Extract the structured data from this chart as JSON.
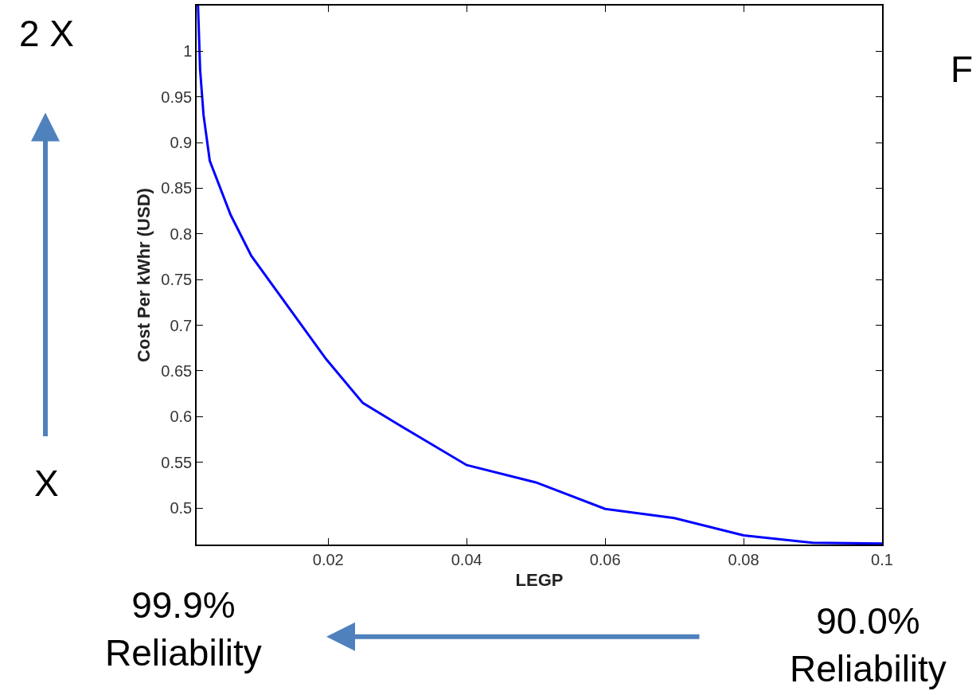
{
  "chart_data": {
    "type": "line",
    "xlabel": "LEGP",
    "ylabel": "Cost Per kWhr (USD)",
    "x": [
      0.0012,
      0.0015,
      0.002,
      0.0029,
      0.0059,
      0.0089,
      0.0197,
      0.025,
      0.03,
      0.04,
      0.05,
      0.06,
      0.07,
      0.08,
      0.09,
      0.1
    ],
    "series": [
      {
        "color": "#0000ff",
        "values": [
          1.05,
          0.98,
          0.93,
          0.88,
          0.821,
          0.776,
          0.663,
          0.615,
          0.592,
          0.547,
          0.528,
          0.499,
          0.489,
          0.47,
          0.462,
          0.461
        ]
      }
    ],
    "xlim": [
      0.001,
      0.1
    ],
    "ylim": [
      0.46,
      1.05
    ],
    "xticks": [
      0.02,
      0.04,
      0.06,
      0.08,
      0.1
    ],
    "yticks": [
      0.5,
      0.55,
      0.6,
      0.65,
      0.7,
      0.75,
      0.8,
      0.85,
      0.9,
      0.95,
      1
    ],
    "marker": "none",
    "line_style": "solid",
    "annotations": [
      "2 X",
      "X",
      "99.9%\nReliability",
      "90.0%\nReliability",
      "F"
    ]
  }
}
